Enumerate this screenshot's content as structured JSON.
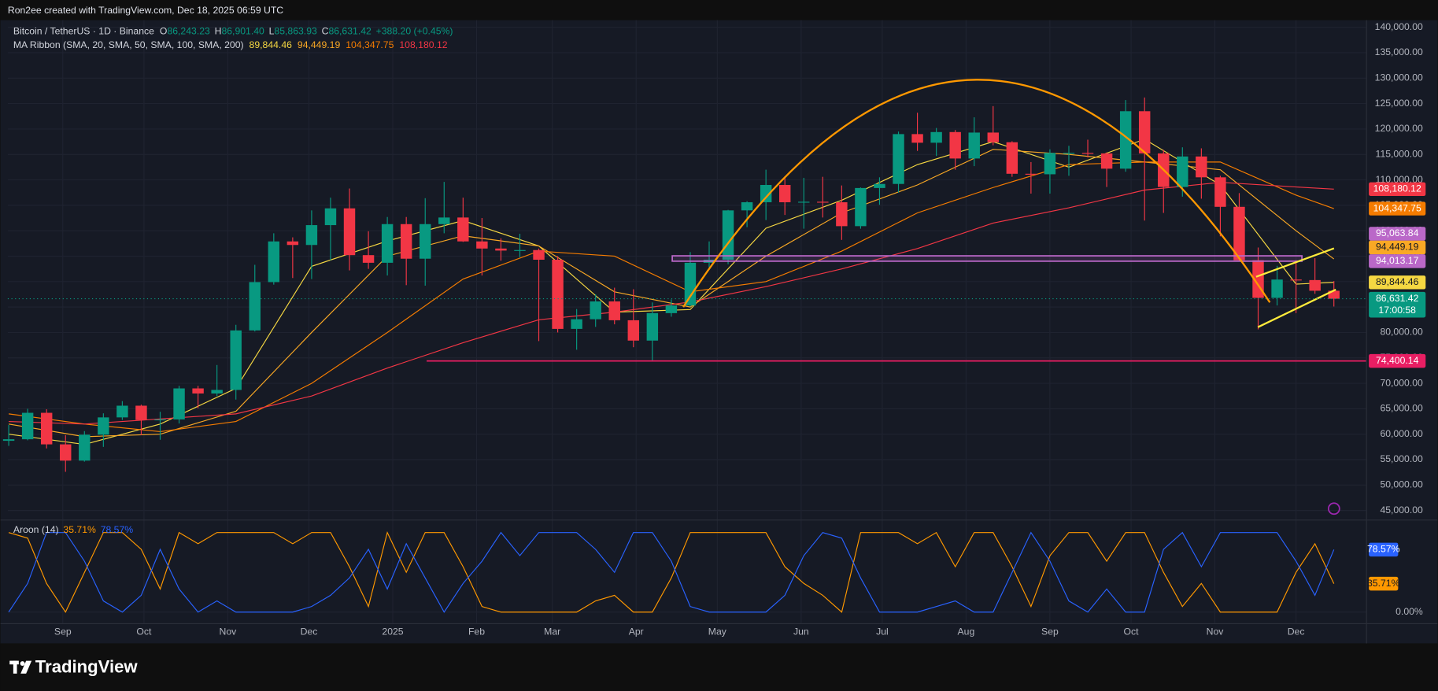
{
  "watermark": "Ron2ee created with TradingView.com, Dec 18, 2025 06:59 UTC",
  "brand": "TradingView",
  "chart_data": [
    {
      "type": "candlestick",
      "title": "Bitcoin / TetherUS · 1D · Binance",
      "legend": [
        {
          "key": "O",
          "value": "86,243.23"
        },
        {
          "key": "H",
          "value": "86,901.40"
        },
        {
          "key": "L",
          "value": "85,863.93"
        },
        {
          "key": "C",
          "value": "86,631.42"
        }
      ],
      "change": "+388.20 (+0.45%)",
      "indicator": "MA Ribbon (SMA, 20, SMA, 50, SMA, 100, SMA, 200)",
      "up_color": "#089981",
      "down_color": "#f23645",
      "x": [
        0,
        1,
        2,
        3,
        4,
        5,
        6,
        7,
        8,
        9,
        10,
        11,
        12,
        13,
        14,
        15,
        16,
        17,
        18,
        19,
        20,
        21,
        22,
        23,
        24,
        25,
        26,
        27,
        28,
        29,
        30,
        31,
        32,
        33,
        34,
        35,
        36,
        37,
        38,
        39,
        40,
        41,
        42,
        43,
        44,
        45,
        46,
        47,
        48,
        49,
        50,
        51,
        52,
        53,
        54,
        55,
        56,
        57,
        58,
        59,
        60,
        61,
        62,
        63,
        64,
        65,
        66,
        67,
        68,
        69,
        70
      ],
      "open": [
        58700,
        59000,
        64200,
        58000,
        54800,
        59900,
        63300,
        65600,
        62800,
        62900,
        69000,
        68000,
        68700,
        80400,
        89900,
        97900,
        97200,
        101100,
        104400,
        95200,
        93700,
        101300,
        94500,
        101300,
        102600,
        97900,
        96500,
        96100,
        96200,
        94300,
        80700,
        82600,
        86100,
        82400,
        78400,
        83800,
        85300,
        93700,
        94300,
        104000,
        105600,
        109000,
        105600,
        105700,
        105600,
        100900,
        108400,
        109200,
        119000,
        117300,
        119400,
        114200,
        119300,
        117400,
        111200,
        111100,
        115300,
        115300,
        115200,
        112200,
        123500,
        115200,
        108600,
        114600,
        110500,
        104700,
        94200,
        86800,
        90400,
        90300,
        88200
      ],
      "high": [
        61800,
        65000,
        64900,
        59800,
        60600,
        64100,
        66500,
        65800,
        64400,
        69500,
        69500,
        73600,
        81500,
        93300,
        99500,
        98700,
        104000,
        106500,
        108300,
        99900,
        102700,
        102700,
        106400,
        109600,
        106500,
        102500,
        98500,
        99400,
        96500,
        95000,
        84600,
        87500,
        88800,
        88500,
        85900,
        86500,
        95800,
        97900,
        104100,
        105800,
        112000,
        110700,
        110400,
        110600,
        108900,
        108500,
        110500,
        119500,
        123200,
        120200,
        119800,
        122300,
        124500,
        117600,
        113500,
        116000,
        116700,
        117900,
        115400,
        125700,
        126200,
        115900,
        116400,
        116200,
        110800,
        107400,
        96700,
        93100,
        94200,
        94600,
        90100
      ],
      "low": [
        57700,
        58800,
        57200,
        52600,
        54600,
        57500,
        62800,
        59800,
        58900,
        62100,
        65100,
        67500,
        66800,
        80200,
        89400,
        90700,
        90500,
        94200,
        92200,
        92500,
        91200,
        89300,
        89200,
        99500,
        97800,
        91200,
        94100,
        94800,
        78300,
        80000,
        76600,
        81100,
        81600,
        77100,
        74500,
        83100,
        85100,
        92800,
        93400,
        100700,
        102100,
        103100,
        100400,
        102600,
        98200,
        100400,
        105100,
        107500,
        115700,
        114700,
        112000,
        112700,
        116800,
        110600,
        107300,
        107300,
        110800,
        114400,
        108600,
        111600,
        102000,
        103500,
        106700,
        106300,
        98900,
        94000,
        80600,
        85300,
        83800,
        87600,
        85100
      ],
      "close": [
        59000,
        64200,
        58000,
        54800,
        59900,
        63300,
        65600,
        62800,
        62900,
        69000,
        68000,
        68700,
        80400,
        89900,
        97900,
        97200,
        101100,
        104400,
        95200,
        93700,
        101300,
        94500,
        101300,
        102600,
        97900,
        96500,
        96100,
        96200,
        94300,
        80700,
        82600,
        86100,
        82400,
        78400,
        83800,
        85300,
        93700,
        94300,
        104000,
        105600,
        109000,
        105600,
        105700,
        105600,
        100900,
        108400,
        109200,
        119000,
        117300,
        119400,
        114200,
        119300,
        117400,
        111200,
        111100,
        115300,
        115300,
        115200,
        112200,
        123500,
        115200,
        108600,
        114600,
        110500,
        104700,
        94200,
        86800,
        90400,
        90300,
        88200,
        86631.42
      ],
      "series": [
        {
          "color": "#f5d742",
          "x": [
            0,
            4,
            8,
            12,
            16,
            20,
            24,
            28,
            32,
            36,
            40,
            44,
            48,
            52,
            56,
            60,
            64,
            68,
            70
          ],
          "values": [
            60000,
            58000,
            62000,
            69000,
            93000,
            98000,
            102000,
            97000,
            84000,
            84500,
            100500,
            106000,
            113000,
            117500,
            112500,
            118000,
            109000,
            89500,
            89844.46
          ],
          "value_label": "89,844.46"
        },
        {
          "color": "#f9a825",
          "x": [
            0,
            4,
            8,
            12,
            16,
            20,
            24,
            28,
            32,
            36,
            40,
            44,
            48,
            52,
            56,
            60,
            64,
            68,
            70
          ],
          "values": [
            62000,
            59500,
            60000,
            64500,
            80000,
            95000,
            99000,
            97000,
            88000,
            85000,
            95000,
            103500,
            109000,
            116000,
            115000,
            113500,
            112000,
            100000,
            94449.19
          ],
          "value_label": "94,449.19"
        },
        {
          "color": "#f57c00",
          "x": [
            0,
            4,
            8,
            12,
            16,
            20,
            24,
            28,
            32,
            36,
            40,
            44,
            48,
            52,
            56,
            60,
            64,
            68,
            70
          ],
          "values": [
            64000,
            62000,
            60500,
            62500,
            70000,
            80000,
            90500,
            96000,
            95000,
            88000,
            90000,
            96000,
            103500,
            108500,
            113000,
            113500,
            113500,
            107000,
            104347.75
          ],
          "value_label": "104,347.75"
        },
        {
          "color": "#f23645",
          "x": [
            0,
            4,
            8,
            12,
            16,
            20,
            24,
            28,
            32,
            36,
            40,
            44,
            48,
            52,
            56,
            60,
            64,
            68,
            70
          ],
          "values": [
            62500,
            62000,
            63000,
            64000,
            67500,
            73000,
            78000,
            82500,
            84000,
            86000,
            89000,
            92500,
            96500,
            101500,
            104500,
            108000,
            109500,
            108600,
            108180.12
          ],
          "value_label": "108,180.12"
        }
      ],
      "zone": {
        "color": "#ba68c8",
        "low": 94013.17,
        "low_label": "94,013.17",
        "high": 95063.84,
        "high_label": "95,063.84"
      },
      "level": {
        "color": "#e91e63",
        "value": 74400.14,
        "label": "74,400.14"
      },
      "last_price": {
        "color": "#089981",
        "value": 86631.42,
        "label": "86,631.42",
        "countdown": "17:00:58"
      },
      "xlim": [
        -0.05,
        71.7
      ],
      "xticks": [
        {
          "value": 2.857,
          "label": "Sep"
        },
        {
          "value": 7.143,
          "label": "Oct"
        },
        {
          "value": 11.571,
          "label": "Nov"
        },
        {
          "value": 15.857,
          "label": "Dec"
        },
        {
          "value": 20.286,
          "label": "2025"
        },
        {
          "value": 24.714,
          "label": "Feb"
        },
        {
          "value": 28.714,
          "label": "Mar"
        },
        {
          "value": 33.143,
          "label": "Apr"
        },
        {
          "value": 37.429,
          "label": "May"
        },
        {
          "value": 41.857,
          "label": "Jun"
        },
        {
          "value": 46.143,
          "label": "Jul"
        },
        {
          "value": 50.571,
          "label": "Aug"
        },
        {
          "value": 55,
          "label": "Sep"
        },
        {
          "value": 59.286,
          "label": "Oct"
        },
        {
          "value": 63.714,
          "label": "Nov"
        },
        {
          "value": 68,
          "label": "Dec"
        }
      ],
      "ylim": [
        43200,
        141400
      ],
      "yticks": [
        {
          "value": 45000,
          "label": "45,000.00"
        },
        {
          "value": 50000,
          "label": "50,000.00"
        },
        {
          "value": 55000,
          "label": "55,000.00"
        },
        {
          "value": 60000,
          "label": "60,000.00"
        },
        {
          "value": 65000,
          "label": "65,000.00"
        },
        {
          "value": 70000,
          "label": "70,000.00"
        },
        {
          "value": 75000,
          "label": "75,000.00"
        },
        {
          "value": 80000,
          "label": "80,000.00"
        },
        {
          "value": 85000,
          "label": "85,000.00"
        },
        {
          "value": 90000,
          "label": "90,000.00"
        },
        {
          "value": 95000,
          "label": "95,000.00"
        },
        {
          "value": 100000,
          "label": "100,000.00"
        },
        {
          "value": 105000,
          "label": "105,000.00"
        },
        {
          "value": 110000,
          "label": "110,000.00"
        },
        {
          "value": 115000,
          "label": "115,000.00"
        },
        {
          "value": 120000,
          "label": "120,000.00"
        },
        {
          "value": 125000,
          "label": "125,000.00"
        },
        {
          "value": 130000,
          "label": "130,000.00"
        },
        {
          "value": 135000,
          "label": "135,000.00"
        },
        {
          "value": 140000,
          "label": "140,000.00"
        }
      ],
      "grid": true
    },
    {
      "type": "line",
      "title": "Aroon (14)",
      "x": [
        0,
        1,
        2,
        3,
        4,
        5,
        6,
        7,
        8,
        9,
        10,
        11,
        12,
        13,
        14,
        15,
        16,
        17,
        18,
        19,
        20,
        21,
        22,
        23,
        24,
        25,
        26,
        27,
        28,
        29,
        30,
        31,
        32,
        33,
        34,
        35,
        36,
        37,
        38,
        39,
        40,
        41,
        42,
        43,
        44,
        45,
        46,
        47,
        48,
        49,
        50,
        51,
        52,
        53,
        54,
        55,
        56,
        57,
        58,
        59,
        60,
        61,
        62,
        63,
        64,
        65,
        66,
        67,
        68,
        69,
        70
      ],
      "series": [
        {
          "color": "#ff9800",
          "values": [
            100,
            93,
            36,
            0,
            50,
            100,
            100,
            79,
            29,
            100,
            86,
            100,
            100,
            100,
            100,
            86,
            100,
            100,
            57,
            7,
            100,
            50,
            100,
            100,
            57,
            7,
            0,
            0,
            0,
            0,
            0,
            14,
            21,
            0,
            0,
            43,
            100,
            100,
            100,
            100,
            100,
            57,
            36,
            21,
            0,
            100,
            100,
            100,
            86,
            100,
            57,
            100,
            100,
            57,
            7,
            71,
            100,
            100,
            64,
            100,
            100,
            50,
            7,
            36,
            0,
            0,
            0,
            0,
            50,
            86,
            35.71
          ],
          "value_label": "35.71%"
        },
        {
          "color": "#2962ff",
          "values": [
            0,
            36,
            100,
            100,
            64,
            14,
            0,
            21,
            79,
            29,
            0,
            14,
            0,
            0,
            0,
            0,
            7,
            21,
            43,
            79,
            29,
            86,
            43,
            0,
            36,
            64,
            100,
            71,
            100,
            100,
            100,
            79,
            50,
            100,
            100,
            64,
            7,
            0,
            0,
            0,
            0,
            21,
            71,
            100,
            93,
            43,
            0,
            0,
            0,
            7,
            14,
            0,
            0,
            50,
            100,
            64,
            14,
            0,
            29,
            0,
            0,
            79,
            100,
            57,
            100,
            100,
            100,
            100,
            64,
            21,
            78.57
          ],
          "value_label": "78.57%"
        }
      ],
      "xlim": [
        -0.05,
        71.7
      ],
      "ylim": [
        -14,
        114
      ],
      "yticks": [
        {
          "value": 0,
          "label": "0.00%"
        }
      ]
    }
  ]
}
